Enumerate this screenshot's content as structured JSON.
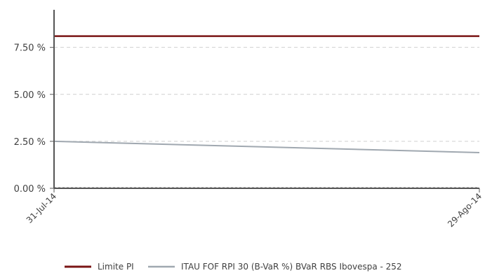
{
  "chart_data": {
    "type": "line",
    "title": "",
    "xlabel": "",
    "ylabel": "",
    "x": [
      "31-Jul-14",
      "29-Ago-14"
    ],
    "ylim": [
      0,
      0.095
    ],
    "y_ticks": [
      0,
      0.025,
      0.05,
      0.075
    ],
    "y_tick_labels": [
      "0.00 %",
      "2.50 %",
      "5.00 %",
      "7.50 %"
    ],
    "grid": "horizontal dashed",
    "legend_position": "bottom",
    "series": [
      {
        "name": "Limite PI",
        "values": [
          0.081,
          0.081
        ],
        "color": "#7a1515"
      },
      {
        "name": "ITAU FOF RPI 30 (B-VaR %) BVaR RBS Ibovespa - 252",
        "values": [
          0.025,
          0.019
        ],
        "color": "#a0a8b0"
      }
    ]
  }
}
